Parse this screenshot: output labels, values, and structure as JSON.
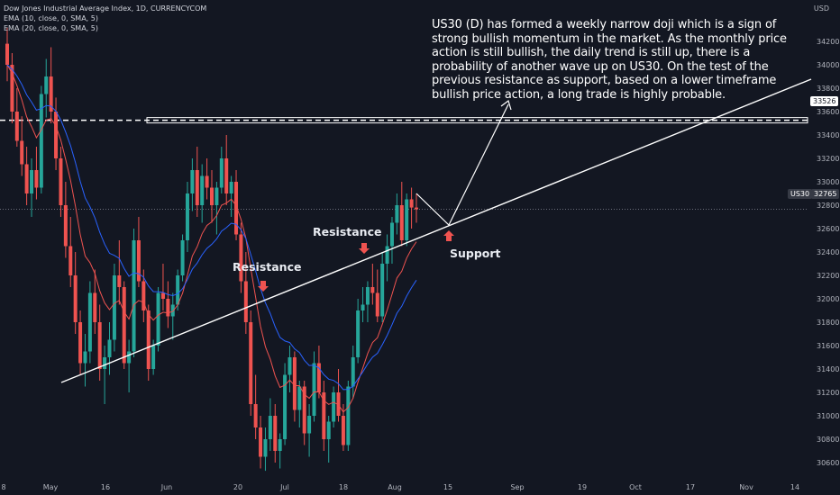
{
  "legend": {
    "title": "Dow Jones Industrial Average Index, 1D, CURRENCYCOM",
    "ema1": "EMA (10, close, 0, SMA, 5)",
    "ema2": "EMA (20, close, 0, SMA, 5)"
  },
  "note": "US30 (D) has formed a weekly narrow doji which is a sign of strong bullish momentum in the market. As the monthly price action is still bullish, the daily trend is still up, there is a probability of another wave up on US30. On the test of the previous resistance as support, based on a lower timeframe bullish price action, a long trade is highly probable.",
  "labels": {
    "resistance1": "Resistance",
    "resistance2": "Resistance",
    "support": "Support"
  },
  "price_axis": {
    "currency": "USD",
    "ticks": [
      "34200",
      "34000",
      "33800",
      "33600",
      "33400",
      "33200",
      "33000",
      "32800",
      "32600",
      "32400",
      "32200",
      "32000",
      "31800",
      "31600",
      "31400",
      "31200",
      "31000",
      "30800",
      "30600"
    ],
    "level_label": "33526",
    "symbol_badge": "US30",
    "last_price_label": "32765"
  },
  "time_axis": {
    "ticks": [
      "8",
      "May",
      "16",
      "Jun",
      "20",
      "Jul",
      "18",
      "Aug",
      "15",
      "Sep",
      "19",
      "Oct",
      "17",
      "Nov",
      "14"
    ]
  },
  "colors": {
    "background": "#131722",
    "up": "#26a69a",
    "down": "#ef5350",
    "ema10": "#ef5350",
    "ema20": "#2962ff",
    "annotation": "#ffffff",
    "arrow_red": "#ef5350",
    "badge_blue": "#2962ff",
    "badge_gray": "#363a45"
  },
  "chart_data": {
    "type": "candlestick",
    "symbol": "US30",
    "timeframe": "1D",
    "ylim": [
      30530,
      34400
    ],
    "resistance_level": 33526,
    "last_price": 32765,
    "candles": [
      [
        34180,
        34320,
        33860,
        34000
      ],
      [
        34000,
        34100,
        33500,
        33600
      ],
      [
        33600,
        33800,
        33300,
        33350
      ],
      [
        33350,
        33560,
        33050,
        33150
      ],
      [
        33150,
        33300,
        32800,
        32900
      ],
      [
        32900,
        33200,
        32700,
        33100
      ],
      [
        33100,
        33300,
        32850,
        32950
      ],
      [
        32950,
        33820,
        32900,
        33750
      ],
      [
        33750,
        34050,
        33550,
        33900
      ],
      [
        33900,
        34150,
        33500,
        33600
      ],
      [
        33600,
        33720,
        33100,
        33200
      ],
      [
        33200,
        33300,
        32700,
        32800
      ],
      [
        32800,
        33000,
        32350,
        32450
      ],
      [
        32450,
        32700,
        32100,
        32200
      ],
      [
        32200,
        32400,
        31700,
        31800
      ],
      [
        31800,
        31900,
        31350,
        31450
      ],
      [
        31450,
        31700,
        31250,
        31550
      ],
      [
        31550,
        32150,
        31450,
        32050
      ],
      [
        32050,
        32250,
        31700,
        31800
      ],
      [
        31800,
        31950,
        31300,
        31400
      ],
      [
        31400,
        31600,
        31100,
        31500
      ],
      [
        31500,
        31800,
        31350,
        31650
      ],
      [
        31650,
        32300,
        31550,
        32200
      ],
      [
        32200,
        32500,
        31950,
        32100
      ],
      [
        32100,
        32150,
        31400,
        31450
      ],
      [
        31450,
        31650,
        31200,
        31550
      ],
      [
        31550,
        32600,
        31500,
        32500
      ],
      [
        32500,
        32700,
        32100,
        32150
      ],
      [
        32150,
        32250,
        31800,
        31900
      ],
      [
        31900,
        31950,
        31300,
        31400
      ],
      [
        31400,
        31650,
        31350,
        31600
      ],
      [
        31600,
        32100,
        31550,
        32050
      ],
      [
        32050,
        32300,
        31900,
        32000
      ],
      [
        32000,
        32150,
        31750,
        31850
      ],
      [
        31850,
        32050,
        31650,
        31950
      ],
      [
        31950,
        32250,
        31900,
        32200
      ],
      [
        32200,
        32550,
        32150,
        32500
      ],
      [
        32500,
        33000,
        32400,
        32900
      ],
      [
        32900,
        33200,
        32750,
        33100
      ],
      [
        33100,
        33300,
        32700,
        32800
      ],
      [
        32800,
        33150,
        32650,
        33050
      ],
      [
        33050,
        33200,
        32850,
        32950
      ],
      [
        32950,
        33100,
        32650,
        32800
      ],
      [
        32800,
        33000,
        32550,
        32950
      ],
      [
        32950,
        33300,
        32900,
        33200
      ],
      [
        33200,
        33400,
        32800,
        32900
      ],
      [
        32900,
        33050,
        32700,
        33000
      ],
      [
        33000,
        33100,
        32500,
        32550
      ],
      [
        32550,
        32650,
        32050,
        32150
      ],
      [
        32150,
        32400,
        31700,
        31800
      ],
      [
        31800,
        31900,
        31000,
        31100
      ],
      [
        31100,
        31350,
        30800,
        30900
      ],
      [
        30900,
        31000,
        30550,
        30650
      ],
      [
        30650,
        30900,
        30530,
        30800
      ],
      [
        30800,
        31150,
        30700,
        31000
      ],
      [
        31000,
        31100,
        30600,
        30700
      ],
      [
        30700,
        30850,
        30550,
        30800
      ],
      [
        30800,
        31450,
        30750,
        31350
      ],
      [
        31350,
        31600,
        31200,
        31500
      ],
      [
        31500,
        31550,
        30950,
        31050
      ],
      [
        31050,
        31300,
        30900,
        31250
      ],
      [
        31250,
        31300,
        30750,
        30850
      ],
      [
        30850,
        31100,
        30650,
        31000
      ],
      [
        31000,
        31550,
        30950,
        31450
      ],
      [
        31450,
        31600,
        31150,
        31200
      ],
      [
        31200,
        31300,
        30700,
        30800
      ],
      [
        30800,
        31000,
        30600,
        30950
      ],
      [
        30950,
        31250,
        30900,
        31200
      ],
      [
        31200,
        31400,
        30950,
        31000
      ],
      [
        31000,
        31100,
        30700,
        30750
      ],
      [
        30750,
        31300,
        30700,
        31250
      ],
      [
        31250,
        31600,
        31150,
        31500
      ],
      [
        31500,
        32000,
        31450,
        31900
      ],
      [
        31900,
        32100,
        31800,
        31950
      ],
      [
        31950,
        32150,
        31800,
        32100
      ],
      [
        32100,
        32300,
        31950,
        32050
      ],
      [
        32050,
        32250,
        31800,
        31850
      ],
      [
        31850,
        32400,
        31800,
        32300
      ],
      [
        32300,
        32550,
        32150,
        32450
      ],
      [
        32450,
        32700,
        32300,
        32650
      ],
      [
        32650,
        32900,
        32550,
        32800
      ],
      [
        32800,
        33000,
        32450,
        32500
      ],
      [
        32500,
        32900,
        32450,
        32850
      ],
      [
        32850,
        32950,
        32600,
        32780
      ],
      [
        32780,
        32900,
        32650,
        32765
      ]
    ],
    "series": [
      {
        "name": "EMA (10, close, 0, SMA, 5)"
      },
      {
        "name": "EMA (20, close, 0, SMA, 5)"
      }
    ]
  }
}
